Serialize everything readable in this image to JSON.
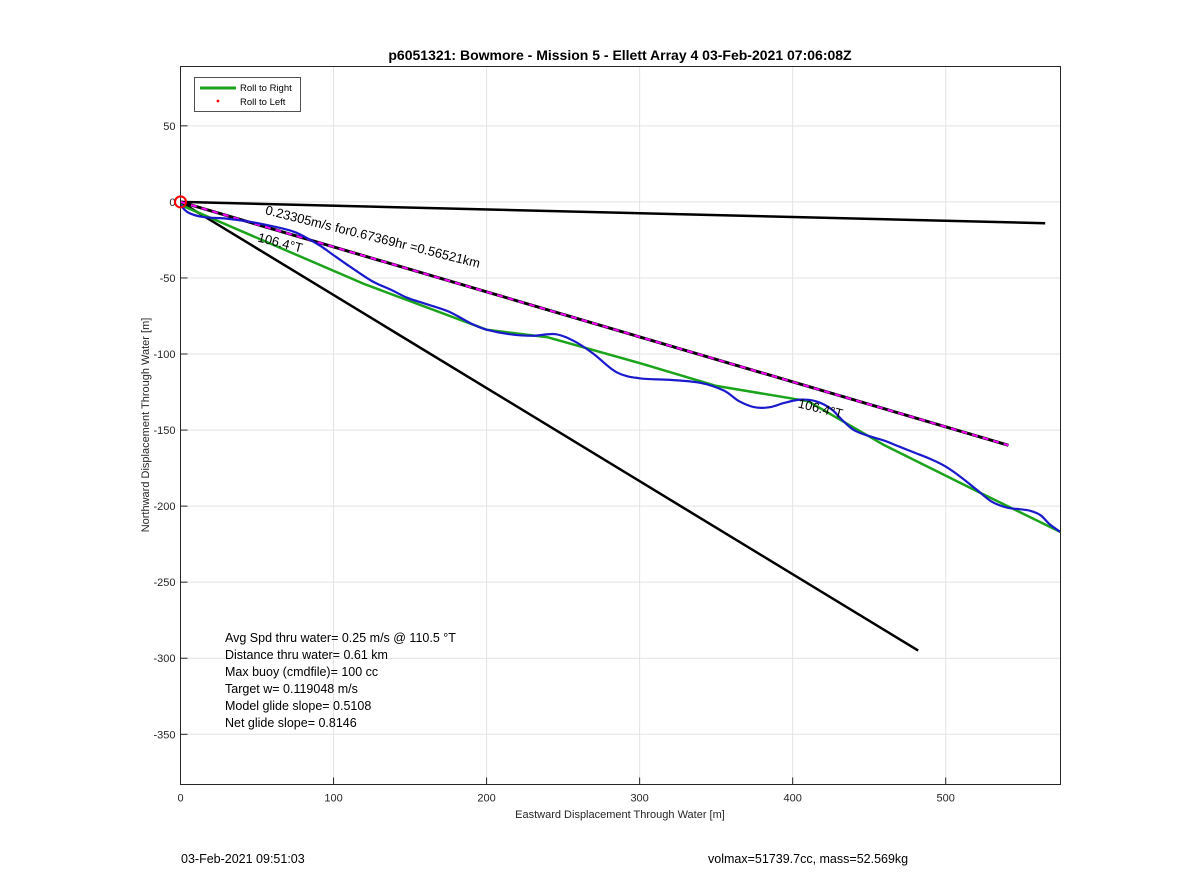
{
  "chart_data": {
    "type": "line",
    "title": "p6051321: Bowmore - Mission 5 - Ellett Array 4 03-Feb-2021 07:06:08Z",
    "xlabel": "Eastward Displacement Through Water [m]",
    "ylabel": "Northward Displacement Through Water [m]",
    "xlim": [
      0,
      575
    ],
    "ylim": [
      -383,
      89
    ],
    "xticks": [
      0,
      100,
      200,
      300,
      400,
      500
    ],
    "yticks": [
      50,
      0,
      -50,
      -100,
      -150,
      -200,
      -250,
      -300,
      -350
    ],
    "grid": true,
    "legend_position": "top-left",
    "legend": [
      {
        "label": "Roll to Right",
        "style": "line",
        "color": "#1ca31c"
      },
      {
        "label": "Roll to Left",
        "style": "dot",
        "color": "#ff0000"
      }
    ],
    "series": [
      {
        "name": "Roll to Right",
        "color": "#1ca31c",
        "x": [
          0,
          120,
          200,
          240,
          300,
          350,
          410,
          460,
          520,
          575
        ],
        "y": [
          -2,
          -54,
          -84,
          -89,
          -106,
          -121,
          -131,
          -160,
          -190,
          -217
        ]
      },
      {
        "color": "#1a1acc",
        "x": [
          0,
          5,
          15,
          30,
          45,
          60,
          75,
          90,
          100,
          110,
          125,
          138,
          148,
          160,
          175,
          190,
          200,
          215,
          230,
          245,
          258,
          270,
          285,
          300,
          320,
          340,
          355,
          365,
          375,
          385,
          395,
          405,
          415,
          425,
          432,
          440,
          450,
          460,
          470,
          480,
          490,
          500,
          510,
          520,
          530,
          540,
          548,
          555,
          562,
          568,
          575
        ],
        "y": [
          -2,
          -7,
          -10,
          -11,
          -13,
          -16,
          -20,
          -28,
          -35,
          -42,
          -52,
          -58,
          -63,
          -67,
          -72,
          -80,
          -84,
          -87,
          -88,
          -87,
          -92,
          -100,
          -112,
          -116,
          -117,
          -119,
          -124,
          -131,
          -135,
          -135,
          -132,
          -130,
          -131,
          -136,
          -143,
          -150,
          -154,
          -157,
          -161,
          -165,
          -169,
          -174,
          -181,
          -189,
          -197,
          -201,
          -202,
          -203,
          -206,
          -212,
          -217
        ]
      },
      {
        "color": "#ff00ff",
        "x": [
          0,
          541
        ],
        "y": [
          0,
          -160
        ]
      },
      {
        "color": "#000000",
        "x": [
          0,
          565
        ],
        "y": [
          0,
          -14
        ]
      },
      {
        "color": "#000000",
        "x": [
          0,
          482
        ],
        "y": [
          0,
          -295
        ]
      }
    ],
    "start_marker": {
      "x": 0,
      "y": 0,
      "color": "#ff0000"
    },
    "annotations": [
      {
        "text": "0.23305m/s for0.67369hr =0.56521km",
        "x": 55,
        "y": -8,
        "angle_deg": 14.1
      },
      {
        "text": "106.4°T",
        "x": 50,
        "y": -26,
        "angle_deg": 14.1
      },
      {
        "text": "106.4°T",
        "x": 403,
        "y": -135,
        "angle_deg": 14.1
      }
    ],
    "stats": [
      "Avg Spd thru water=  0.25 m/s @ 110.5 °T",
      "Distance thru water=  0.61 km",
      "Max buoy (cmdfile)= 100 cc",
      "Target w= 0.119048 m/s",
      "Model glide slope= 0.5108",
      "Net glide slope= 0.8146"
    ]
  },
  "footer": {
    "left": "03-Feb-2021 09:51:03",
    "right": "volmax=51739.7cc, mass=52.569kg"
  }
}
